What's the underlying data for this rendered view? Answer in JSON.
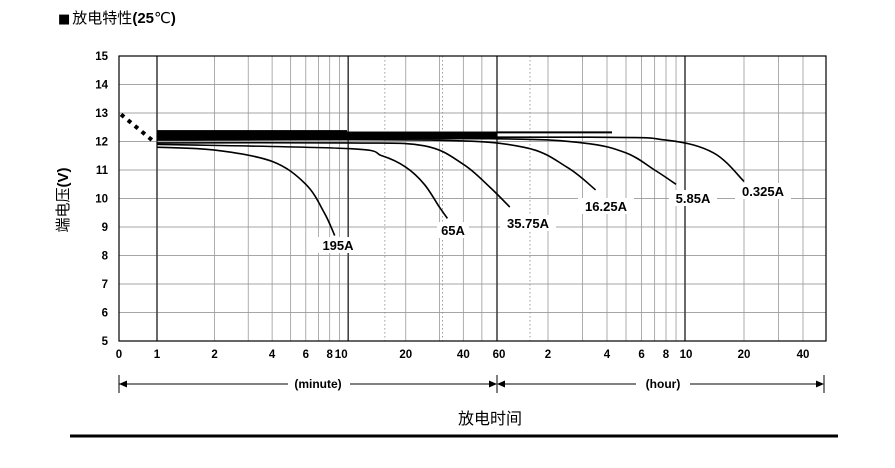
{
  "header": {
    "marker": "■",
    "title_main": "放电特性",
    "title_open": "(",
    "title_num": "25",
    "title_unit": "℃",
    "title_close": ")"
  },
  "chart_data": {
    "type": "line",
    "title": "放电特性(25℃)",
    "ylabel_main": "端电压",
    "ylabel_unit": "(V)",
    "xlabel": "放电时间",
    "ylim": [
      5,
      15
    ],
    "y_ticks": [
      "15",
      "14",
      "13",
      "12",
      "11",
      "10",
      "9",
      "8",
      "7",
      "6",
      "5"
    ],
    "x_axis_scale": "log (two segments: minutes 1–60, hours 1–40)",
    "x_ticks_minute": [
      "0",
      "1",
      "2",
      "4",
      "6",
      "8",
      "10",
      "20",
      "40",
      "60"
    ],
    "x_ticks_hour": [
      "2",
      "4",
      "6",
      "8",
      "10",
      "20",
      "40"
    ],
    "x_span_labels": [
      "(minute)",
      "(hour)"
    ],
    "grid": true,
    "series": [
      {
        "name": "195A",
        "unit": "min",
        "points": [
          [
            1,
            11.8
          ],
          [
            2,
            11.7
          ],
          [
            4,
            11.3
          ],
          [
            6,
            10.5
          ],
          [
            7.5,
            9.5
          ],
          [
            8.5,
            8.7
          ]
        ]
      },
      {
        "name": "65A",
        "unit": "min",
        "points": [
          [
            1,
            11.9
          ],
          [
            10,
            11.75
          ],
          [
            15,
            11.5
          ],
          [
            20,
            11.1
          ],
          [
            25,
            10.5
          ],
          [
            30,
            9.7
          ],
          [
            33,
            9.3
          ]
        ]
      },
      {
        "name": "35.75A",
        "unit": "min",
        "points": [
          [
            1,
            11.95
          ],
          [
            10,
            11.95
          ],
          [
            25,
            11.85
          ],
          [
            40,
            11.2
          ],
          [
            55,
            10.4
          ],
          [
            70,
            9.7
          ]
        ]
      },
      {
        "name": "16.25A",
        "unit": "hour",
        "points": [
          [
            0.0167,
            12.05
          ],
          [
            0.5,
            12.05
          ],
          [
            1.5,
            11.8
          ],
          [
            2.5,
            11.1
          ],
          [
            3.5,
            10.3
          ]
        ]
      },
      {
        "name": "5.85A",
        "unit": "hour",
        "points": [
          [
            0.0167,
            12.1
          ],
          [
            1,
            12.1
          ],
          [
            3,
            11.95
          ],
          [
            5,
            11.6
          ],
          [
            7,
            11.0
          ],
          [
            9,
            10.5
          ]
        ]
      },
      {
        "name": "0.325A",
        "unit": "hour",
        "points": [
          [
            0.0167,
            12.15
          ],
          [
            3,
            12.15
          ],
          [
            8,
            12.05
          ],
          [
            14,
            11.6
          ],
          [
            20,
            10.6
          ]
        ]
      }
    ]
  }
}
